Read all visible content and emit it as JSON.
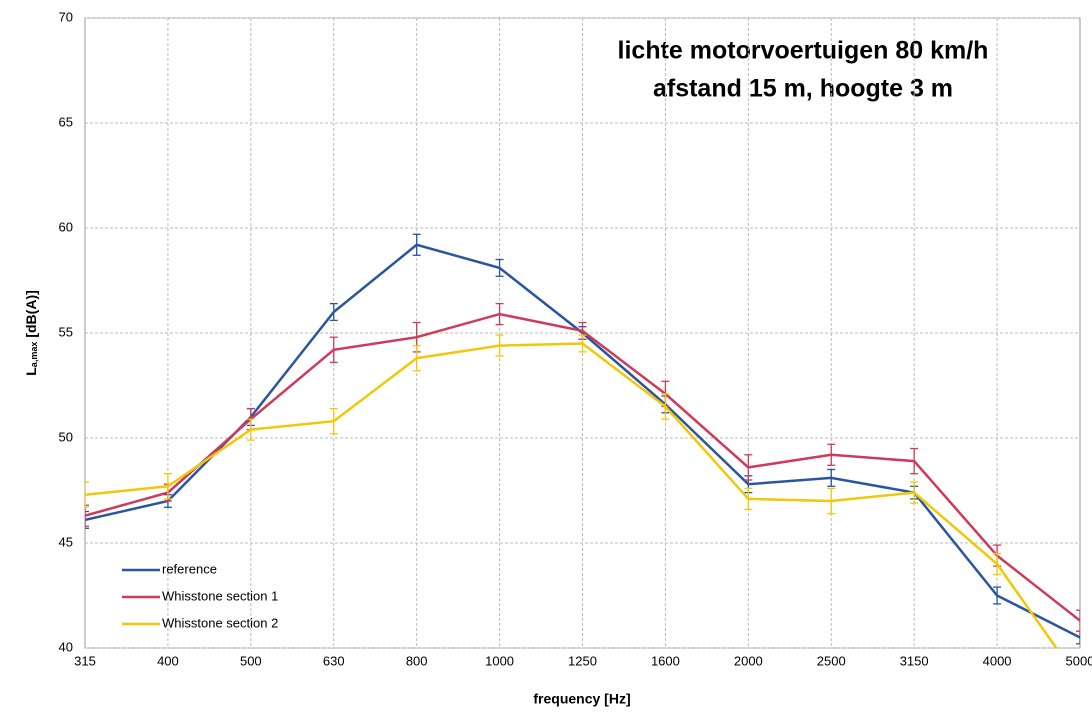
{
  "chart_data": {
    "type": "line",
    "title": [
      "lichte motorvoertuigen 80 km/h",
      "afstand 15 m, hoogte 3 m"
    ],
    "x_label": "frequency [Hz]",
    "y_label": "L",
    "y_label_sub": "a,max",
    "y_label_unit": "[dB(A)]",
    "categories": [
      "315",
      "400",
      "500",
      "630",
      "800",
      "1000",
      "1250",
      "1600",
      "2000",
      "2500",
      "3150",
      "4000",
      "5000"
    ],
    "series": [
      {
        "name": "reference",
        "color": "#2a56a0",
        "values": [
          46.1,
          47.0,
          51.0,
          56.0,
          59.2,
          58.1,
          55.0,
          51.6,
          47.8,
          48.1,
          47.4,
          42.5,
          40.5
        ],
        "errors": [
          0.4,
          0.3,
          0.4,
          0.4,
          0.5,
          0.4,
          0.3,
          0.4,
          0.4,
          0.4,
          0.3,
          0.4,
          0.3
        ]
      },
      {
        "name": "Whisstone section 1",
        "color": "#d03a5a",
        "values": [
          46.3,
          47.4,
          50.9,
          54.2,
          54.8,
          55.9,
          55.1,
          52.1,
          48.6,
          49.2,
          48.9,
          44.4,
          41.3
        ],
        "errors": [
          0.5,
          0.4,
          0.5,
          0.6,
          0.7,
          0.5,
          0.4,
          0.6,
          0.6,
          0.5,
          0.6,
          0.5,
          0.5
        ]
      },
      {
        "name": "Whisstone section 2",
        "color": "#f0c808",
        "values": [
          47.3,
          47.7,
          50.4,
          50.8,
          53.8,
          54.4,
          54.5,
          51.5,
          47.1,
          47.0,
          47.4,
          44.0,
          38.4
        ],
        "errors": [
          0.6,
          0.6,
          0.5,
          0.6,
          0.6,
          0.5,
          0.4,
          0.6,
          0.5,
          0.6,
          0.5,
          0.5,
          0.5
        ]
      }
    ],
    "ylim": [
      40,
      70
    ],
    "yticks": [
      40,
      45,
      50,
      55,
      60,
      65,
      70
    ],
    "grid": true,
    "legend": "lower left"
  }
}
